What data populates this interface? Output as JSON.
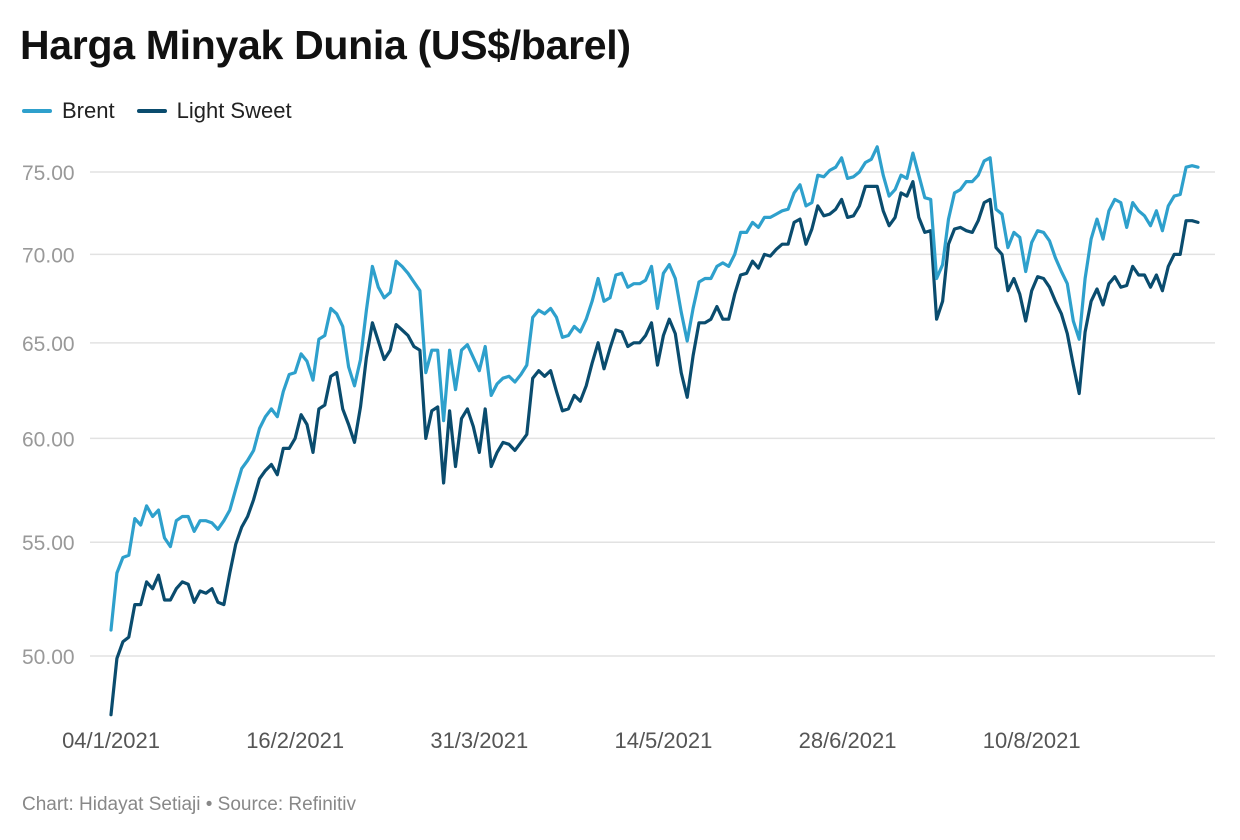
{
  "title": "Harga Minyak Dunia (US$/barel)",
  "footer": "Chart: Hidayat Setiaji • Source: Refinitiv",
  "chart_data": {
    "type": "line",
    "title": "Harga Minyak Dunia (US$/barel)",
    "xlabel": "",
    "ylabel": "",
    "y_scale": "log",
    "ylim": [
      47.0,
      77.0
    ],
    "y_ticks": [
      "50.00",
      "55.00",
      "60.00",
      "65.00",
      "70.00",
      "75.00"
    ],
    "x_tick_labels": [
      "04/1/2021",
      "16/2/2021",
      "31/3/2021",
      "14/5/2021",
      "28/6/2021",
      "10/8/2021"
    ],
    "x_start": "04/1/2021",
    "x_end": "06/9/2021",
    "grid": true,
    "legend_position": "top-left",
    "series": [
      {
        "name": "Brent",
        "color": "#2ea0cc",
        "values": [
          51.1,
          53.6,
          54.3,
          54.4,
          56.1,
          55.8,
          56.7,
          56.2,
          56.5,
          55.2,
          54.8,
          56.0,
          56.2,
          56.2,
          55.5,
          56.0,
          56.0,
          55.9,
          55.6,
          56.0,
          56.5,
          57.5,
          58.5,
          58.9,
          59.4,
          60.5,
          61.1,
          61.5,
          61.1,
          62.4,
          63.3,
          63.4,
          64.4,
          64.0,
          63.0,
          65.2,
          65.4,
          66.9,
          66.6,
          65.9,
          63.7,
          62.7,
          64.1,
          66.8,
          69.3,
          68.1,
          67.5,
          67.8,
          69.6,
          69.3,
          68.9,
          68.4,
          67.9,
          63.4,
          64.6,
          64.6,
          60.9,
          64.6,
          62.5,
          64.6,
          64.9,
          64.2,
          63.5,
          64.8,
          62.2,
          62.8,
          63.1,
          63.2,
          62.9,
          63.3,
          63.8,
          66.4,
          66.8,
          66.6,
          66.9,
          66.4,
          65.3,
          65.4,
          65.9,
          65.6,
          66.3,
          67.3,
          68.6,
          67.3,
          67.5,
          68.8,
          68.9,
          68.1,
          68.3,
          68.3,
          68.5,
          69.3,
          66.9,
          68.9,
          69.4,
          68.6,
          66.7,
          65.1,
          66.9,
          68.4,
          68.6,
          68.6,
          69.3,
          69.5,
          69.3,
          70.0,
          71.3,
          71.3,
          71.9,
          71.6,
          72.2,
          72.2,
          72.4,
          72.6,
          72.7,
          73.7,
          74.2,
          72.9,
          73.1,
          74.8,
          74.7,
          75.1,
          75.3,
          75.9,
          74.6,
          74.7,
          75.0,
          75.6,
          75.8,
          76.6,
          74.8,
          73.5,
          73.9,
          74.8,
          74.6,
          76.2,
          74.8,
          73.4,
          73.3,
          68.6,
          69.4,
          72.1,
          73.7,
          73.9,
          74.4,
          74.4,
          74.8,
          75.7,
          75.9,
          72.7,
          72.4,
          70.4,
          71.3,
          71.0,
          69.0,
          70.7,
          71.4,
          71.3,
          70.8,
          69.8,
          69.0,
          68.3,
          66.2,
          65.2,
          68.6,
          70.9,
          72.1,
          70.9,
          72.6,
          73.3,
          73.1,
          71.6,
          73.1,
          72.6,
          72.3,
          71.7,
          72.6,
          71.4,
          72.9,
          73.5,
          73.6,
          75.3,
          75.4,
          75.3
        ]
      },
      {
        "name": "Light Sweet",
        "color": "#0a4c6e",
        "values": [
          47.6,
          49.9,
          50.6,
          50.8,
          52.2,
          52.2,
          53.2,
          52.9,
          53.5,
          52.4,
          52.4,
          52.9,
          53.2,
          53.1,
          52.3,
          52.8,
          52.7,
          52.9,
          52.3,
          52.2,
          53.6,
          54.9,
          55.7,
          56.2,
          57.0,
          58.0,
          58.4,
          58.7,
          58.2,
          59.5,
          59.5,
          60.0,
          61.2,
          60.7,
          59.3,
          61.5,
          61.7,
          63.2,
          63.4,
          61.5,
          60.7,
          59.8,
          61.6,
          64.2,
          66.1,
          65.1,
          64.1,
          64.6,
          66.0,
          65.7,
          65.4,
          64.8,
          64.6,
          60.0,
          61.4,
          61.6,
          57.8,
          61.4,
          58.6,
          61.0,
          61.5,
          60.6,
          59.3,
          61.5,
          58.6,
          59.3,
          59.8,
          59.7,
          59.4,
          59.8,
          60.2,
          63.1,
          63.5,
          63.2,
          63.5,
          62.4,
          61.4,
          61.5,
          62.2,
          61.9,
          62.7,
          63.9,
          65.0,
          63.6,
          64.7,
          65.7,
          65.6,
          64.8,
          65.0,
          65.0,
          65.4,
          66.1,
          63.8,
          65.4,
          66.3,
          65.5,
          63.4,
          62.1,
          64.3,
          66.1,
          66.1,
          66.3,
          67.0,
          66.3,
          66.3,
          67.7,
          68.8,
          68.9,
          69.6,
          69.2,
          70.0,
          69.9,
          70.3,
          70.6,
          70.6,
          71.9,
          72.1,
          70.6,
          71.5,
          72.9,
          72.3,
          72.4,
          72.7,
          73.3,
          72.2,
          72.3,
          72.9,
          74.1,
          74.1,
          74.1,
          72.6,
          71.7,
          72.2,
          73.7,
          73.5,
          74.4,
          72.2,
          71.3,
          71.4,
          66.3,
          67.3,
          70.6,
          71.5,
          71.6,
          71.4,
          71.3,
          72.0,
          73.1,
          73.3,
          70.4,
          70.0,
          67.9,
          68.6,
          67.7,
          66.2,
          67.9,
          68.7,
          68.6,
          68.1,
          67.3,
          66.6,
          65.5,
          63.8,
          62.3,
          65.6,
          67.3,
          68.0,
          67.1,
          68.3,
          68.7,
          68.1,
          68.2,
          69.3,
          68.8,
          68.8,
          68.1,
          68.8,
          67.9,
          69.3,
          70.0,
          70.0,
          72.0,
          72.0,
          71.9
        ]
      }
    ]
  }
}
